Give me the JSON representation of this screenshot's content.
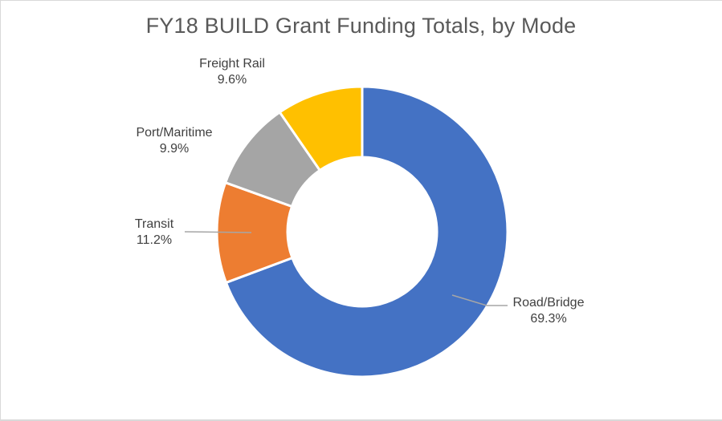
{
  "chart_data": {
    "type": "pie",
    "variant": "donut",
    "title": "FY18 BUILD Grant Funding Totals, by Mode",
    "categories": [
      "Road/Bridge",
      "Transit",
      "Port/Maritime",
      "Freight Rail"
    ],
    "values": [
      69.3,
      11.2,
      9.9,
      9.6
    ],
    "unit": "%",
    "labels": [
      "69.3%",
      "11.2%",
      "9.9%",
      "9.6%"
    ],
    "colors": [
      "#4472C4",
      "#ED7D31",
      "#A5A5A5",
      "#FFC000"
    ],
    "start_angle": "12 o'clock",
    "direction": "clockwise",
    "legend": "none",
    "data_labels": "outside with category name and percentage"
  },
  "title": "FY18 BUILD Grant Funding Totals, by Mode",
  "slices": [
    {
      "name": "Road/Bridge",
      "pct": "69.3%",
      "color": "#4472C4"
    },
    {
      "name": "Transit",
      "pct": "11.2%",
      "color": "#ED7D31"
    },
    {
      "name": "Port/Maritime",
      "pct": "9.9%",
      "color": "#A5A5A5"
    },
    {
      "name": "Freight Rail",
      "pct": "9.6%",
      "color": "#FFC000"
    }
  ]
}
